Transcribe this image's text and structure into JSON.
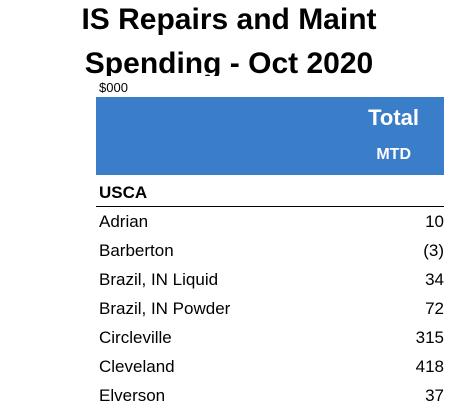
{
  "report": {
    "title_line1": "IS Repairs and Maint",
    "title_line2": "Spending - Oct 2020",
    "units": "$000"
  },
  "header": {
    "column_title": "Total",
    "column_subtitle": "MTD",
    "band_color": "#3A7DC9"
  },
  "section": {
    "label": "USCA"
  },
  "rows": [
    {
      "name": "Adrian",
      "value": "10"
    },
    {
      "name": "Barberton",
      "value": "(3)"
    },
    {
      "name": "Brazil, IN Liquid",
      "value": "34"
    },
    {
      "name": "Brazil, IN Powder",
      "value": "72"
    },
    {
      "name": "Circleville",
      "value": "315"
    },
    {
      "name": "Cleveland",
      "value": "418"
    },
    {
      "name": "Elverson",
      "value": "37"
    }
  ]
}
